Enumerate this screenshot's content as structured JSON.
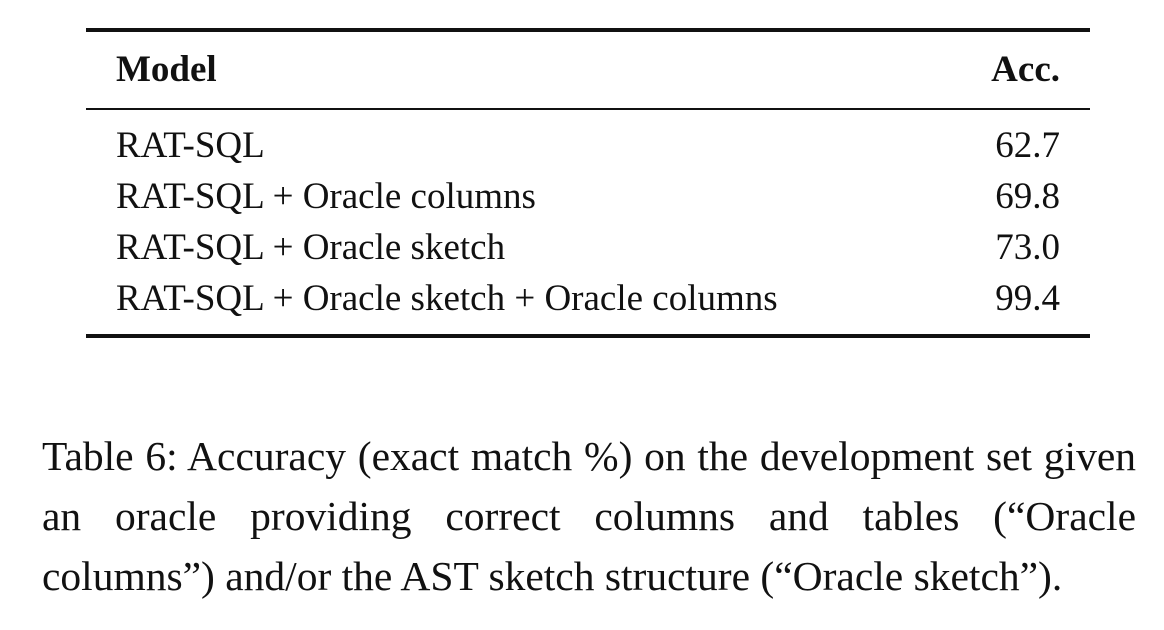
{
  "table": {
    "headers": {
      "model": "Model",
      "acc": "Acc."
    },
    "rows": [
      {
        "model": "RAT-SQL",
        "acc": "62.7"
      },
      {
        "model": "RAT-SQL + Oracle columns",
        "acc": "69.8"
      },
      {
        "model": "RAT-SQL + Oracle sketch",
        "acc": "73.0"
      },
      {
        "model": "RAT-SQL + Oracle sketch + Oracle columns",
        "acc": "99.4"
      }
    ]
  },
  "caption": {
    "text": "Table 6: Accuracy (exact match %) on the development set given an oracle providing correct columns and ta­bles (“Oracle columns”) and/or the AST sketch struc­ture (“Oracle sketch”)."
  }
}
